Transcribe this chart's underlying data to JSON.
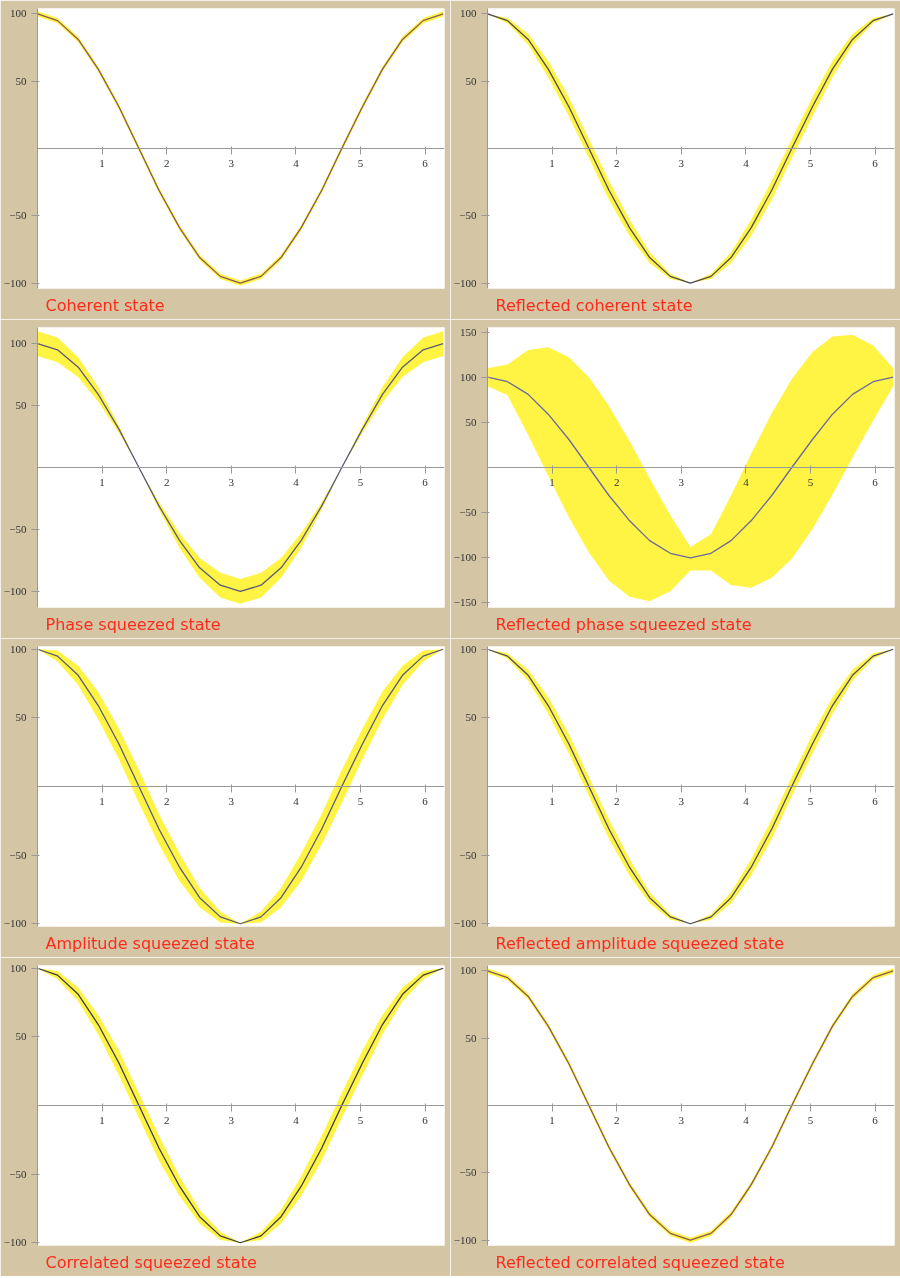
{
  "chart_data": [
    {
      "type": "line",
      "title": "Coherent state",
      "x": [
        0,
        0.31,
        0.63,
        0.94,
        1.26,
        1.57,
        1.88,
        2.2,
        2.51,
        2.83,
        3.14,
        3.46,
        3.77,
        4.08,
        4.4,
        4.71,
        5.03,
        5.34,
        5.65,
        5.97,
        6.28
      ],
      "xlim": [
        0,
        6.3
      ],
      "xticks": [
        1,
        2,
        3,
        4,
        5,
        6
      ],
      "ylim": [
        -104,
        104
      ],
      "yticks": [
        -100,
        -50,
        50,
        100
      ],
      "grid": false,
      "marker": "none",
      "line_style": "solid",
      "series": [
        {
          "color": "#8a5a5a",
          "values": [
            100,
            95,
            81,
            59,
            31,
            0,
            -31,
            -59,
            -81,
            -95,
            -100,
            -95,
            -81,
            -59,
            -31,
            0,
            31,
            59,
            81,
            95,
            100
          ],
          "lower": [
            98,
            93,
            79,
            57,
            29,
            -2,
            -33,
            -61,
            -83,
            -97,
            -102,
            -97,
            -83,
            -61,
            -33,
            -2,
            29,
            57,
            79,
            93,
            98
          ],
          "upper": [
            102,
            97,
            83,
            61,
            33,
            2,
            -29,
            -57,
            -79,
            -93,
            -98,
            -93,
            -79,
            -57,
            -29,
            2,
            33,
            61,
            83,
            97,
            102
          ]
        }
      ]
    },
    {
      "type": "line",
      "title": "Reflected coherent state",
      "x": [
        0,
        0.31,
        0.63,
        0.94,
        1.26,
        1.57,
        1.88,
        2.2,
        2.51,
        2.83,
        3.14,
        3.46,
        3.77,
        4.08,
        4.4,
        4.71,
        5.03,
        5.34,
        5.65,
        5.97,
        6.28
      ],
      "xlim": [
        0,
        6.3
      ],
      "xticks": [
        1,
        2,
        3,
        4,
        5,
        6
      ],
      "ylim": [
        -104,
        104
      ],
      "yticks": [
        -100,
        -50,
        50,
        100
      ],
      "grid": false,
      "marker": "none",
      "line_style": "solid",
      "series": [
        {
          "color": "#4b4b5b",
          "values": [
            100,
            95,
            81,
            59,
            31,
            0,
            -31,
            -59,
            -81,
            -95,
            -100,
            -95,
            -81,
            -59,
            -31,
            0,
            31,
            59,
            81,
            95,
            100
          ],
          "lower": [
            100,
            93,
            77,
            53,
            24,
            -7,
            -38,
            -65,
            -85,
            -97,
            -100,
            -97,
            -85,
            -65,
            -38,
            -7,
            24,
            53,
            77,
            93,
            100
          ],
          "upper": [
            100,
            97,
            85,
            65,
            38,
            7,
            -24,
            -53,
            -77,
            -93,
            -100,
            -93,
            -77,
            -53,
            -24,
            7,
            38,
            65,
            85,
            97,
            100
          ]
        }
      ]
    },
    {
      "type": "line",
      "title": "Phase squeezed state",
      "x": [
        0,
        0.31,
        0.63,
        0.94,
        1.26,
        1.57,
        1.88,
        2.2,
        2.51,
        2.83,
        3.14,
        3.46,
        3.77,
        4.08,
        4.4,
        4.71,
        5.03,
        5.34,
        5.65,
        5.97,
        6.28
      ],
      "xlim": [
        0,
        6.3
      ],
      "xticks": [
        1,
        2,
        3,
        4,
        5,
        6
      ],
      "ylim": [
        -113,
        113
      ],
      "yticks": [
        -100,
        -50,
        50,
        100
      ],
      "grid": false,
      "marker": "none",
      "line_style": "solid",
      "series": [
        {
          "color": "#5a5a7a",
          "values": [
            100,
            95,
            81,
            59,
            31,
            0,
            -31,
            -59,
            -81,
            -95,
            -100,
            -95,
            -81,
            -59,
            -31,
            0,
            31,
            59,
            81,
            95,
            100
          ],
          "lower": [
            90,
            85,
            73,
            53,
            28,
            0,
            -34,
            -65,
            -89,
            -105,
            -110,
            -105,
            -89,
            -65,
            -34,
            0,
            28,
            53,
            73,
            85,
            90
          ],
          "upper": [
            110,
            105,
            89,
            65,
            34,
            0,
            -28,
            -53,
            -73,
            -85,
            -90,
            -85,
            -73,
            -53,
            -28,
            0,
            34,
            65,
            89,
            105,
            110
          ]
        }
      ]
    },
    {
      "type": "line",
      "title": "Reflected phase squeezed state",
      "x": [
        0,
        0.31,
        0.63,
        0.94,
        1.26,
        1.57,
        1.88,
        2.2,
        2.51,
        2.83,
        3.14,
        3.46,
        3.77,
        4.08,
        4.4,
        4.71,
        5.03,
        5.34,
        5.65,
        5.97,
        6.28
      ],
      "xlim": [
        0,
        6.3
      ],
      "xticks": [
        1,
        2,
        3,
        4,
        5,
        6
      ],
      "ylim": [
        -155,
        155
      ],
      "yticks": [
        -150,
        -100,
        -50,
        50,
        100,
        150
      ],
      "grid": false,
      "marker": "none",
      "line_style": "solid",
      "series": [
        {
          "color": "#6a6aa0",
          "values": [
            100,
            95,
            81,
            59,
            31,
            0,
            -31,
            -59,
            -81,
            -95,
            -100,
            -95,
            -81,
            -59,
            -31,
            0,
            31,
            59,
            81,
            95,
            100
          ],
          "lower": [
            90,
            80,
            36,
            -9,
            -55,
            -94,
            -125,
            -143,
            -148,
            -137,
            -114,
            -114,
            -130,
            -133,
            -122,
            -101,
            -68,
            -30,
            11,
            52,
            90
          ],
          "upper": [
            110,
            114,
            130,
            133,
            122,
            100,
            68,
            29,
            -12,
            -53,
            -88,
            -74,
            -31,
            15,
            60,
            98,
            128,
            145,
            147,
            135,
            110
          ]
        }
      ]
    },
    {
      "type": "line",
      "title": "Amplitude squeezed state",
      "x": [
        0,
        0.31,
        0.63,
        0.94,
        1.26,
        1.57,
        1.88,
        2.2,
        2.51,
        2.83,
        3.14,
        3.46,
        3.77,
        4.08,
        4.4,
        4.71,
        5.03,
        5.34,
        5.65,
        5.97,
        6.28
      ],
      "xlim": [
        0,
        6.3
      ],
      "xticks": [
        1,
        2,
        3,
        4,
        5,
        6
      ],
      "ylim": [
        -102,
        102
      ],
      "yticks": [
        -100,
        -50,
        50,
        100
      ],
      "grid": false,
      "marker": "none",
      "line_style": "solid",
      "series": [
        {
          "color": "#5a5a7a",
          "values": [
            100,
            95,
            81,
            59,
            31,
            0,
            -31,
            -59,
            -81,
            -95,
            -100,
            -95,
            -81,
            -59,
            -31,
            0,
            31,
            59,
            81,
            95,
            100
          ],
          "lower": [
            100,
            91,
            74,
            49,
            20,
            -12,
            -42,
            -69,
            -88,
            -99,
            -100,
            -99,
            -88,
            -69,
            -42,
            -12,
            20,
            49,
            74,
            91,
            100
          ],
          "upper": [
            100,
            99,
            88,
            69,
            42,
            12,
            -20,
            -49,
            -74,
            -91,
            -100,
            -91,
            -74,
            -49,
            -20,
            12,
            42,
            69,
            88,
            99,
            100
          ]
        }
      ]
    },
    {
      "type": "line",
      "title": "Reflected amplitude squeezed state",
      "x": [
        0,
        0.31,
        0.63,
        0.94,
        1.26,
        1.57,
        1.88,
        2.2,
        2.51,
        2.83,
        3.14,
        3.46,
        3.77,
        4.08,
        4.4,
        4.71,
        5.03,
        5.34,
        5.65,
        5.97,
        6.28
      ],
      "xlim": [
        0,
        6.3
      ],
      "xticks": [
        1,
        2,
        3,
        4,
        5,
        6
      ],
      "ylim": [
        -102,
        102
      ],
      "yticks": [
        -100,
        -50,
        50,
        100
      ],
      "grid": false,
      "marker": "none",
      "line_style": "solid",
      "series": [
        {
          "color": "#4b4b6b",
          "values": [
            100,
            95,
            81,
            59,
            31,
            0,
            -31,
            -59,
            -81,
            -95,
            -100,
            -95,
            -81,
            -59,
            -31,
            0,
            31,
            59,
            81,
            95,
            100
          ],
          "lower": [
            100,
            93,
            77,
            53,
            24,
            -7,
            -38,
            -65,
            -85,
            -97,
            -100,
            -97,
            -85,
            -65,
            -38,
            -7,
            24,
            53,
            77,
            93,
            100
          ],
          "upper": [
            100,
            97,
            85,
            65,
            38,
            7,
            -24,
            -53,
            -77,
            -93,
            -100,
            -93,
            -77,
            -53,
            -24,
            7,
            38,
            65,
            85,
            97,
            100
          ]
        }
      ]
    },
    {
      "type": "line",
      "title": "Correlated squeezed state",
      "x": [
        0,
        0.31,
        0.63,
        0.94,
        1.26,
        1.57,
        1.88,
        2.2,
        2.51,
        2.83,
        3.14,
        3.46,
        3.77,
        4.08,
        4.4,
        4.71,
        5.03,
        5.34,
        5.65,
        5.97,
        6.28
      ],
      "xlim": [
        0,
        6.3
      ],
      "xticks": [
        1,
        2,
        3,
        4,
        5,
        6
      ],
      "ylim": [
        -102,
        102
      ],
      "yticks": [
        -100,
        -50,
        50,
        100
      ],
      "grid": false,
      "marker": "none",
      "line_style": "solid",
      "series": [
        {
          "color": "#3b3b4b",
          "values": [
            100,
            95,
            81,
            59,
            31,
            0,
            -31,
            -59,
            -81,
            -95,
            -100,
            -95,
            -81,
            -59,
            -31,
            0,
            31,
            59,
            81,
            95,
            100
          ],
          "lower": [
            100,
            92,
            76,
            52,
            22,
            -9,
            -40,
            -66,
            -86,
            -98,
            -100,
            -98,
            -86,
            -66,
            -40,
            -9,
            22,
            52,
            76,
            92,
            100
          ],
          "upper": [
            100,
            98,
            86,
            66,
            40,
            9,
            -22,
            -52,
            -76,
            -92,
            -100,
            -92,
            -76,
            -52,
            -22,
            9,
            40,
            66,
            86,
            98,
            100
          ]
        }
      ]
    },
    {
      "type": "line",
      "title": "Reflected correlated squeezed state",
      "x": [
        0,
        0.31,
        0.63,
        0.94,
        1.26,
        1.57,
        1.88,
        2.2,
        2.51,
        2.83,
        3.14,
        3.46,
        3.77,
        4.08,
        4.4,
        4.71,
        5.03,
        5.34,
        5.65,
        5.97,
        6.28
      ],
      "xlim": [
        0,
        6.3
      ],
      "xticks": [
        1,
        2,
        3,
        4,
        5,
        6
      ],
      "ylim": [
        -104,
        104
      ],
      "yticks": [
        -100,
        -50,
        50,
        100
      ],
      "grid": false,
      "marker": "none",
      "line_style": "solid",
      "series": [
        {
          "color": "#8a5a5a",
          "values": [
            100,
            95,
            81,
            59,
            31,
            0,
            -31,
            -59,
            -81,
            -95,
            -100,
            -95,
            -81,
            -59,
            -31,
            0,
            31,
            59,
            81,
            95,
            100
          ],
          "lower": [
            98,
            93,
            79,
            57,
            29,
            -2,
            -33,
            -61,
            -83,
            -97,
            -102,
            -97,
            -83,
            -61,
            -33,
            -2,
            29,
            57,
            79,
            93,
            98
          ],
          "upper": [
            102,
            97,
            83,
            61,
            33,
            2,
            -29,
            -57,
            -79,
            -93,
            -98,
            -93,
            -79,
            -57,
            -29,
            2,
            33,
            61,
            83,
            97,
            102
          ]
        }
      ]
    }
  ]
}
